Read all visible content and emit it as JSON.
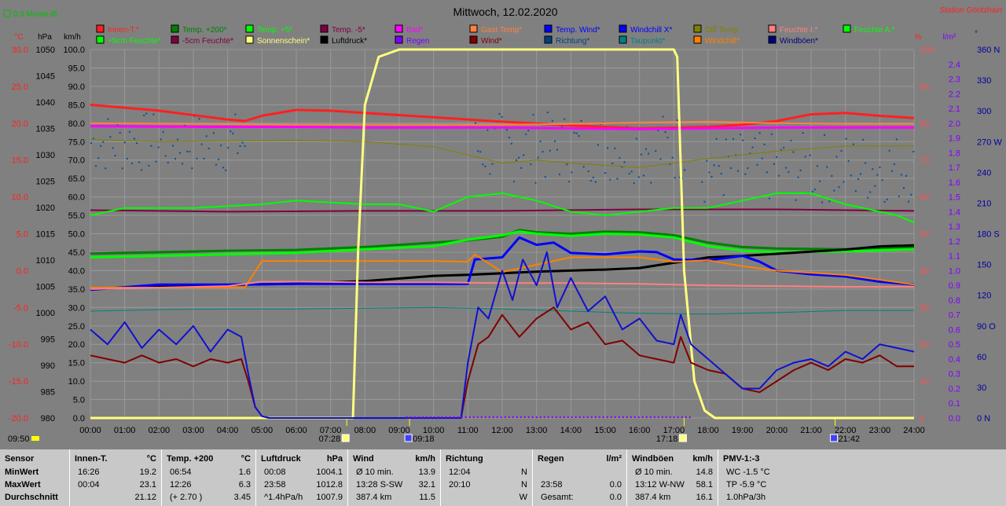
{
  "top_left_label": "0.8 Monat-Ø",
  "station": "Station Göritzhain",
  "chart_data": {
    "type": "line",
    "title": "Mittwoch, 12.02.2020",
    "legend_row1": [
      {
        "name": "Innen-T.*",
        "color": "#ff2020"
      },
      {
        "name": "Temp. +200*",
        "color": "#008000"
      },
      {
        "name": "Temp. +5*",
        "color": "#00ff00"
      },
      {
        "name": "Temp. -5*",
        "color": "#800040"
      },
      {
        "name": "Bad*",
        "color": "#ff00ff"
      },
      {
        "name": "Gast Temp*",
        "color": "#ff8040"
      },
      {
        "name": "Temp. Wind*",
        "color": "#0000ff"
      },
      {
        "name": "Windchill X*",
        "color": "#0000ff"
      },
      {
        "name": "Diff Temp.",
        "color": "#808000"
      },
      {
        "name": "Feuchte I.*",
        "color": "#ff8080"
      },
      {
        "name": "Feuchte A.*",
        "color": "#00ff00"
      }
    ],
    "legend_row2": [
      {
        "name": "+5cm Feuchte*",
        "color": "#00ff00"
      },
      {
        "name": "-5cm Feuchte*",
        "color": "#800040"
      },
      {
        "name": "Sonnenschein*",
        "color": "#ffff80"
      },
      {
        "name": "Luftdruck*",
        "color": "#000000"
      },
      {
        "name": "Regen",
        "color": "#8000ff"
      },
      {
        "name": "Wind*",
        "color": "#800000"
      },
      {
        "name": "Richtung*",
        "color": "#004080"
      },
      {
        "name": "Taupunkt*",
        "color": "#008080"
      },
      {
        "name": "Windchill*",
        "color": "#ff8000"
      },
      {
        "name": "Windböen*",
        "color": "#000080"
      }
    ],
    "axis_units": {
      "temp": "°C",
      "press": "hPa",
      "wind": "km/h",
      "hum": "%",
      "rain": "l/m²",
      "dir": "°"
    },
    "axes": {
      "temp": [
        "30.0",
        "25.0",
        "20.0",
        "15.0",
        "10.0",
        "5.0",
        "0.0",
        "-5.0",
        "-10.0",
        "-15.0",
        "-20.0"
      ],
      "press": [
        "1050",
        "1045",
        "1040",
        "1035",
        "1030",
        "1025",
        "1020",
        "1015",
        "1010",
        "1005",
        "1000",
        "995",
        "990",
        "985",
        "980"
      ],
      "wind": [
        "100.0",
        "95.0",
        "90.0",
        "85.0",
        "80.0",
        "75.0",
        "70.0",
        "65.0",
        "60.0",
        "55.0",
        "50.0",
        "45.0",
        "40.0",
        "35.0",
        "30.0",
        "25.0",
        "20.0",
        "15.0",
        "10.0",
        "5.0",
        "0.0"
      ],
      "hum": [
        "100",
        "90",
        "80",
        "70",
        "60",
        "50",
        "40",
        "30",
        "20",
        "10",
        "0"
      ],
      "rain": [
        "2.4",
        "2.3",
        "2.2",
        "2.1",
        "2.0",
        "1.9",
        "1.8",
        "1.7",
        "1.6",
        "1.5",
        "1.4",
        "1.3",
        "1.2",
        "1.1",
        "1.0",
        "0.9",
        "0.8",
        "0.7",
        "0.6",
        "0.5",
        "0.4",
        "0.3",
        "0.2",
        "0.1",
        "0.0"
      ],
      "dir": [
        "360 N",
        "330",
        "300",
        "270 W",
        "240",
        "210",
        "180 S",
        "150",
        "120",
        "90 O",
        "60",
        "30",
        "0   N"
      ]
    },
    "x_ticks": [
      "00:00",
      "01:00",
      "02:00",
      "03:00",
      "04:00",
      "05:00",
      "06:00",
      "07:00",
      "08:00",
      "09:00",
      "10:00",
      "11:00",
      "12:00",
      "13:00",
      "14:00",
      "15:00",
      "16:00",
      "17:00",
      "18:00",
      "19:00",
      "20:00",
      "21:00",
      "22:00",
      "23:00",
      "24:00"
    ],
    "annotations": [
      {
        "hour": 7.47,
        "label": "07:28",
        "kind": "sunrise"
      },
      {
        "hour": 9.3,
        "label": "09:18",
        "kind": "moonset"
      },
      {
        "hour": 17.3,
        "label": "17:18",
        "kind": "sunset"
      },
      {
        "hour": 21.7,
        "label": "21:42",
        "kind": "moonrise"
      }
    ],
    "bottom_left_label": "09:50",
    "series": [
      {
        "name": "Innen-T.*",
        "axis": "temp",
        "color": "#ff2020",
        "width": 3,
        "x": [
          0,
          2,
          4,
          4.5,
          5,
          6,
          7,
          8,
          10,
          12,
          14,
          16,
          18,
          19,
          20,
          21,
          22,
          23,
          24
        ],
        "y": [
          22.5,
          21.7,
          20.5,
          20.3,
          21.0,
          21.8,
          21.7,
          21.4,
          20.8,
          20.2,
          19.7,
          19.3,
          19.5,
          19.8,
          20.3,
          21.2,
          21.4,
          21.0,
          20.7
        ]
      },
      {
        "name": "Gast Temp*",
        "axis": "temp",
        "color": "#ff8040",
        "width": 2,
        "x": [
          0,
          6,
          10,
          12,
          14,
          16,
          18,
          20,
          22,
          24
        ],
        "y": [
          20.0,
          19.8,
          19.8,
          19.8,
          19.9,
          20.1,
          20.2,
          20.0,
          19.9,
          19.9
        ]
      },
      {
        "name": "Bad*",
        "axis": "temp",
        "color": "#ff00ff",
        "width": 3,
        "x": [
          0,
          4,
          6,
          8,
          10,
          12,
          14,
          16,
          18,
          20,
          22,
          24
        ],
        "y": [
          19.6,
          19.5,
          19.5,
          19.4,
          19.4,
          19.4,
          19.3,
          19.2,
          19.3,
          19.4,
          19.4,
          19.4
        ]
      },
      {
        "name": "Diff Temp.",
        "axis": "temp",
        "color": "#808000",
        "width": 1,
        "x": [
          0,
          2,
          4,
          6,
          8,
          10,
          12,
          13,
          14,
          16,
          18,
          20,
          22,
          24
        ],
        "y": [
          17.8,
          17.5,
          17.6,
          17.7,
          17.5,
          16.8,
          14.6,
          15.0,
          14.6,
          14.0,
          15.2,
          16.2,
          16.9,
          16.9
        ]
      },
      {
        "name": "Temp. -5*",
        "axis": "temp",
        "color": "#800040",
        "width": 2,
        "x": [
          0,
          4,
          8,
          12,
          16,
          20,
          24
        ],
        "y": [
          8.2,
          8.0,
          8.1,
          8.1,
          8.3,
          8.3,
          8.1
        ]
      },
      {
        "name": "Feuchte A.*",
        "axis": "hum",
        "color": "#00ff00",
        "width": 2,
        "x": [
          0,
          1,
          3,
          5,
          6,
          8,
          9,
          10,
          11,
          12,
          13,
          14,
          15,
          16,
          17,
          18,
          19,
          20,
          21,
          22,
          23,
          23.5,
          24
        ],
        "y": [
          55,
          57,
          57,
          58,
          59,
          58,
          58,
          56,
          60,
          61,
          59,
          56,
          55,
          56,
          57,
          57,
          59,
          61,
          61,
          58,
          56,
          55,
          53
        ]
      },
      {
        "name": "Temp. +200*",
        "axis": "temp",
        "color": "#008000",
        "width": 3,
        "x": [
          0,
          4,
          6,
          8,
          10,
          11,
          12,
          12.5,
          13,
          14,
          15,
          16,
          17,
          18,
          19,
          20,
          22,
          24
        ],
        "y": [
          2.3,
          2.7,
          2.8,
          3.2,
          3.8,
          4.1,
          4.6,
          5.5,
          5.2,
          5.0,
          5.3,
          5.2,
          4.8,
          3.8,
          3.2,
          3.0,
          2.9,
          3.2
        ]
      },
      {
        "name": "Temp. +5*",
        "axis": "temp",
        "color": "#00ff00",
        "width": 3,
        "x": [
          0,
          4,
          6,
          8,
          10,
          11,
          12,
          12.5,
          13,
          14,
          15,
          16,
          17,
          18,
          19,
          20,
          22,
          24
        ],
        "y": [
          1.8,
          2.2,
          2.4,
          2.9,
          3.3,
          4.2,
          4.8,
          5.3,
          5.0,
          4.7,
          5.0,
          4.9,
          4.5,
          3.3,
          2.7,
          2.5,
          2.6,
          2.9
        ]
      },
      {
        "name": "Luftdruck*",
        "axis": "press",
        "color": "#000000",
        "width": 3,
        "x": [
          0,
          2,
          4,
          6,
          8,
          10,
          11,
          12,
          13,
          14,
          15,
          16,
          17,
          18,
          19,
          20,
          21,
          22,
          23,
          24
        ],
        "y": [
          1004.5,
          1005.0,
          1005.3,
          1005.5,
          1006.0,
          1007.0,
          1007.2,
          1007.5,
          1007.8,
          1008.0,
          1008.2,
          1008.5,
          1009.5,
          1010.5,
          1010.8,
          1011.2,
          1011.6,
          1012.0,
          1012.6,
          1012.8
        ]
      },
      {
        "name": "Windchill X*",
        "axis": "temp",
        "color": "#0000ff",
        "width": 3,
        "x": [
          0,
          2,
          4,
          6,
          8,
          10,
          11,
          11.2,
          12,
          12.5,
          13,
          13.5,
          14,
          15,
          16,
          16.5,
          17,
          18,
          19,
          19.5,
          20,
          21,
          22,
          23,
          24
        ],
        "y": [
          -2.6,
          -1.9,
          -1.9,
          -1.8,
          -1.8,
          -1.8,
          -1.8,
          1.5,
          1.8,
          4.5,
          3.5,
          3.8,
          2.4,
          2.2,
          2.6,
          2.5,
          1.5,
          1.4,
          2.0,
          1.2,
          0.0,
          -0.5,
          -0.8,
          -1.5,
          -1.9
        ]
      },
      {
        "name": "Windchill*",
        "axis": "temp",
        "color": "#ff8000",
        "width": 2,
        "x": [
          0,
          4,
          4.5,
          5,
          6,
          8,
          10,
          11,
          11.2,
          12,
          13,
          14,
          15,
          16,
          17,
          18,
          19,
          20,
          22,
          24
        ],
        "y": [
          -2.3,
          -2.3,
          -2.3,
          1.3,
          1.3,
          1.3,
          1.3,
          1.2,
          2.2,
          -0.2,
          0.8,
          1.8,
          1.8,
          1.8,
          1.2,
          1.4,
          0.6,
          0.0,
          -0.6,
          -1.9
        ]
      },
      {
        "name": "Feuchte I.*",
        "axis": "temp",
        "color": "#ff8080",
        "width": 2,
        "x": [
          0,
          4,
          5,
          6,
          8,
          10,
          12,
          14,
          16,
          18,
          20,
          22,
          24
        ],
        "y": [
          -2.5,
          -2.1,
          -1.5,
          -1.5,
          -1.6,
          -1.6,
          -1.7,
          -1.7,
          -1.8,
          -2.0,
          -2.1,
          -2.2,
          -2.2
        ]
      },
      {
        "name": "Taupunkt*",
        "axis": "temp",
        "color": "#008080",
        "width": 1,
        "x": [
          0,
          2,
          4,
          6,
          8,
          10,
          12,
          14,
          16,
          18,
          20,
          22,
          24
        ],
        "y": [
          -5.5,
          -5.3,
          -5.2,
          -5.2,
          -5.1,
          -5.0,
          -5.2,
          -5.5,
          -5.8,
          -5.9,
          -5.7,
          -5.4,
          -5.4
        ]
      },
      {
        "name": "Sonnenschein*",
        "axis": "hum",
        "color": "#ffff80",
        "width": 3,
        "x": [
          0,
          7.65,
          7.8,
          8.0,
          8.4,
          9,
          17,
          17.1,
          17.3,
          17.6,
          17.9,
          18.2,
          24
        ],
        "y": [
          0,
          0,
          45,
          85,
          98,
          100,
          100,
          98,
          40,
          10,
          2,
          0,
          0
        ]
      },
      {
        "name": "Wind*",
        "axis": "wind",
        "color": "#800000",
        "width": 2,
        "x": [
          0,
          0.5,
          1,
          1.5,
          2,
          2.5,
          3,
          3.5,
          4,
          4.4,
          4.6,
          4.8,
          5,
          5.2,
          10,
          10.8,
          11.0,
          11.3,
          11.6,
          12,
          12.5,
          13,
          13.5,
          14,
          14.5,
          15,
          15.5,
          16,
          16.5,
          17,
          17.2,
          17.5,
          18,
          18.5,
          19,
          19.5,
          20,
          20.5,
          21,
          21.5,
          22,
          22.5,
          23,
          23.5,
          24
        ],
        "y": [
          17,
          16,
          15,
          17,
          15,
          16,
          14,
          16,
          15,
          16,
          10,
          3,
          0.5,
          0,
          0,
          0,
          10,
          20,
          22,
          28,
          22,
          27,
          30,
          24,
          26,
          20,
          21,
          17,
          16,
          15,
          22,
          15,
          13,
          12,
          8,
          7,
          10,
          13,
          15,
          13,
          16,
          15,
          17,
          14,
          14
        ]
      },
      {
        "name": "Windböen*",
        "axis": "wind",
        "color": "#1010d0",
        "width": 2,
        "x": [
          0,
          0.5,
          1,
          1.5,
          2,
          2.5,
          3,
          3.5,
          4,
          4.4,
          4.6,
          4.8,
          5,
          5.2,
          10,
          10.8,
          11.0,
          11.3,
          11.6,
          12,
          12.3,
          12.6,
          13,
          13.3,
          13.6,
          14,
          14.5,
          15,
          15.5,
          16,
          16.5,
          17,
          17.2,
          17.5,
          18,
          18.5,
          19,
          19.5,
          20,
          20.5,
          21,
          21.5,
          22,
          22.5,
          23,
          23.5,
          24
        ],
        "y": [
          24,
          20,
          26,
          19,
          24,
          20,
          25,
          18,
          24,
          22,
          12,
          3,
          0.5,
          0,
          0,
          0,
          15,
          30,
          27,
          40,
          32,
          43,
          36,
          45,
          30,
          38,
          29,
          33,
          24,
          27,
          21,
          20,
          28,
          20,
          16,
          12,
          8,
          8,
          13,
          15,
          16,
          14,
          18,
          16,
          20,
          19,
          18
        ]
      },
      {
        "name": "Richtung*",
        "axis": "dir",
        "color": "#004080",
        "width": 0,
        "x": [],
        "y": []
      }
    ]
  },
  "table": {
    "cols": [
      {
        "head": [
          "Sensor",
          ""
        ],
        "rows": [
          [
            "MinWert"
          ],
          [
            "MaxWert"
          ],
          [
            "Durchschnitt"
          ]
        ]
      },
      {
        "head": [
          "Innen-T.",
          "°C"
        ],
        "rows": [
          [
            "16:26",
            "19.2"
          ],
          [
            "00:04",
            "23.1"
          ],
          [
            "",
            "21.12"
          ]
        ]
      },
      {
        "head": [
          "Temp. +200",
          "°C"
        ],
        "rows": [
          [
            "06:54",
            "1.6"
          ],
          [
            "12:26",
            "6.3"
          ],
          [
            "(+ 2.70 )",
            "3.45"
          ]
        ]
      },
      {
        "head": [
          "Luftdruck",
          "hPa"
        ],
        "rows": [
          [
            "00:08",
            "1004.1"
          ],
          [
            "23:58",
            "1012.8"
          ],
          [
            "^1.4hPa/h",
            "1007.9"
          ]
        ]
      },
      {
        "head": [
          "Wind",
          "km/h"
        ],
        "rows": [
          [
            "Ø 10 min.",
            "13.9"
          ],
          [
            "13:28   S-SW",
            "32.1"
          ],
          [
            "387.4 km",
            "11.5"
          ]
        ]
      },
      {
        "head": [
          "Richtung",
          ""
        ],
        "rows": [
          [
            "12:04",
            "N"
          ],
          [
            "20:10",
            "N"
          ],
          [
            "",
            "W"
          ]
        ]
      },
      {
        "head": [
          "Regen",
          "l/m²"
        ],
        "rows": [
          [
            "",
            ""
          ],
          [
            "23:58",
            "0.0"
          ],
          [
            "Gesamt:",
            "0.0"
          ]
        ]
      },
      {
        "head": [
          "Windböen",
          "km/h"
        ],
        "rows": [
          [
            "Ø 10 min.",
            "14.8"
          ],
          [
            "13:12   W-NW",
            "58.1"
          ],
          [
            "387.4 km",
            "16.1"
          ]
        ]
      },
      {
        "head": [
          "PMV-1:-3",
          ""
        ],
        "rows": [
          [
            "WC -1.5 °C",
            ""
          ],
          [
            "TP -5.9 °C",
            ""
          ],
          [
            "1.0hPa/3h",
            ""
          ]
        ]
      }
    ]
  }
}
